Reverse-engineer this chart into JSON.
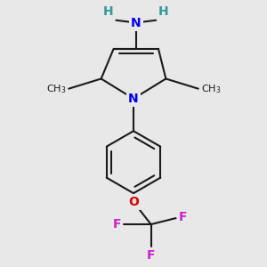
{
  "background_color": "#e8e8e8",
  "bond_color": "#1a1a1a",
  "N_color": "#0000ee",
  "O_color": "#dd0000",
  "F_color": "#cc22cc",
  "NH2_H_color": "#339999",
  "line_width": 1.5,
  "font_size_atom": 10,
  "font_size_methyl": 8,
  "xlim": [
    -0.45,
    0.45
  ],
  "ylim": [
    -0.52,
    0.52
  ]
}
